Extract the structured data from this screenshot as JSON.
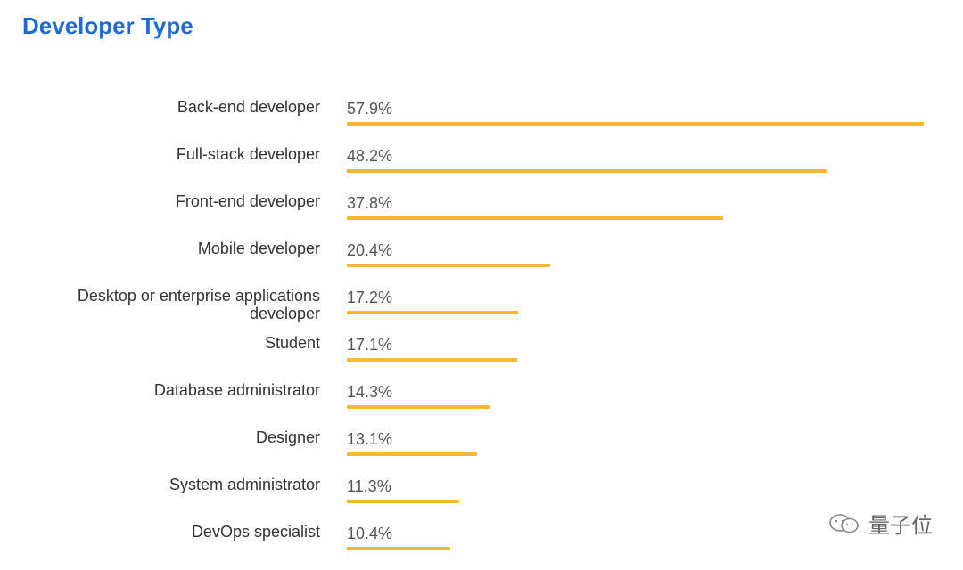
{
  "chart_data": {
    "type": "bar",
    "orientation": "horizontal",
    "title": "Developer Type",
    "categories": [
      "Back-end developer",
      "Full-stack developer",
      "Front-end developer",
      "Mobile developer",
      "Desktop or enterprise applications developer",
      "Student",
      "Database administrator",
      "Designer",
      "System administrator",
      "DevOps specialist"
    ],
    "values": [
      57.9,
      48.2,
      37.8,
      20.4,
      17.2,
      17.1,
      14.3,
      13.1,
      11.3,
      10.4
    ],
    "value_labels": [
      "57.9%",
      "48.2%",
      "37.8%",
      "20.4%",
      "17.2%",
      "17.1%",
      "14.3%",
      "13.1%",
      "11.3%",
      "10.4%"
    ],
    "xlim": [
      0,
      57.9
    ],
    "grid": false,
    "bar_color": "#f7b733"
  },
  "watermark": {
    "text": "量子位",
    "icon": "wechat-icon"
  }
}
